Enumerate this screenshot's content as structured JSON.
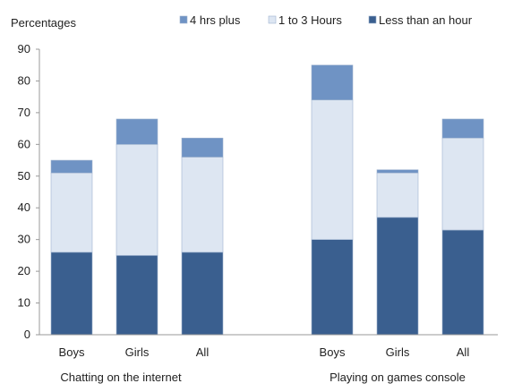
{
  "chart_data": {
    "type": "bar",
    "stacked": true,
    "ylabel": "Percentages",
    "ylim": [
      0,
      90
    ],
    "yticks": [
      0,
      10,
      20,
      30,
      40,
      50,
      60,
      70,
      80,
      90
    ],
    "grid": false,
    "legend_position": "top-right",
    "groups": [
      {
        "label": "Chatting on the internet",
        "categories": [
          "Boys",
          "Girls",
          "All"
        ]
      },
      {
        "label": "Playing on games console",
        "categories": [
          "Boys",
          "Girls",
          "All"
        ]
      }
    ],
    "categories": [
      "Boys",
      "Girls",
      "All",
      "Boys",
      "Girls",
      "All"
    ],
    "series": [
      {
        "name": "Less than an hour",
        "color": "#3a5f8f",
        "values": [
          26,
          25,
          26,
          30,
          37,
          33
        ]
      },
      {
        "name": "1 to 3 Hours",
        "color": "#dde6f2",
        "values": [
          25,
          35,
          30,
          44,
          14,
          29
        ]
      },
      {
        "name": "4 hrs plus",
        "color": "#6f93c4",
        "values": [
          4,
          8,
          6,
          11,
          1,
          6
        ]
      }
    ],
    "legend_order": [
      "4 hrs plus",
      "1 to 3 Hours",
      "Less than an hour"
    ]
  }
}
